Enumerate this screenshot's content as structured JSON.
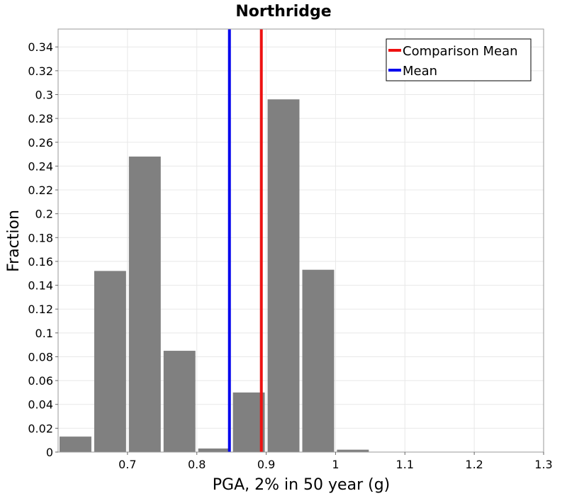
{
  "chart_data": {
    "type": "bar",
    "title": "Northridge",
    "xlabel": "PGA, 2% in 50 year (g)",
    "ylabel": "Fraction",
    "xlim": [
      0.6,
      1.3
    ],
    "ylim": [
      0,
      0.355
    ],
    "grid": true,
    "bin_width": 0.05,
    "bins": [
      {
        "x": 0.625,
        "value": 0.013
      },
      {
        "x": 0.675,
        "value": 0.152
      },
      {
        "x": 0.725,
        "value": 0.248
      },
      {
        "x": 0.775,
        "value": 0.085
      },
      {
        "x": 0.825,
        "value": 0.003
      },
      {
        "x": 0.875,
        "value": 0.05
      },
      {
        "x": 0.925,
        "value": 0.296
      },
      {
        "x": 0.975,
        "value": 0.153
      },
      {
        "x": 1.025,
        "value": 0.002
      }
    ],
    "x_ticks": [
      "0.7",
      "0.8",
      "0.9",
      "1",
      "1.1",
      "1.2",
      "1.3"
    ],
    "y_ticks": [
      "0",
      "0.02",
      "0.04",
      "0.06",
      "0.08",
      "0.1",
      "0.12",
      "0.14",
      "0.16",
      "0.18",
      "0.2",
      "0.22",
      "0.24",
      "0.26",
      "0.28",
      "0.3",
      "0.32",
      "0.34"
    ],
    "lines": [
      {
        "name": "Comparison Mean",
        "x": 0.893,
        "color": "#ee1111"
      },
      {
        "name": "Mean",
        "x": 0.847,
        "color": "#0000ee"
      }
    ],
    "legend_position": "top-right",
    "bar_color": "#808080"
  }
}
